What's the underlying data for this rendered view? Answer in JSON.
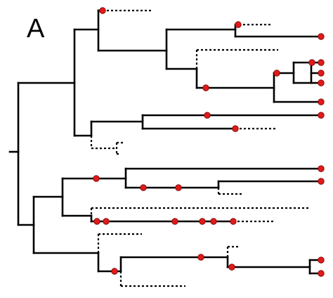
{
  "figure": {
    "panel_label": "A",
    "node_color": "#e01a1a",
    "branch_color": "#000000",
    "description_style": "phylogenetic tree; solid = observed lineages, dotted = extinct/unsampled lineages, red dots = sampled fossil nodes"
  }
}
